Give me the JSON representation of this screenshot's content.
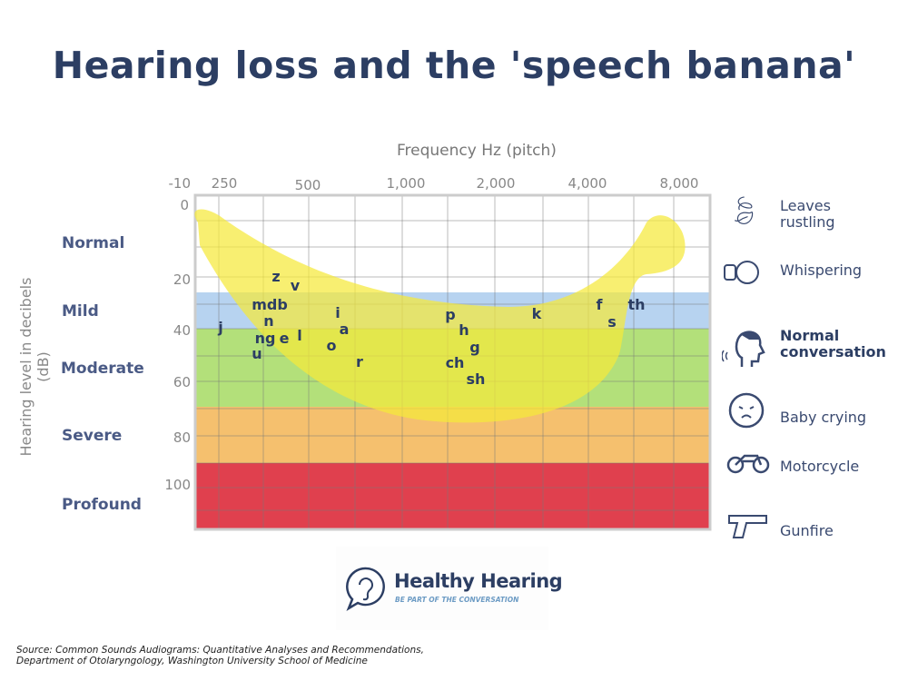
{
  "title": "Hearing loss and the 'speech banana'",
  "x_axis_label": "Frequency Hz (pitch)",
  "y_axis_label": "Hearing level in decibels (dB)",
  "x_ticks": [
    "250",
    "500",
    "1,000",
    "2,000",
    "4,000",
    "8,000"
  ],
  "y_ticks": [
    "-10",
    "0",
    "20",
    "40",
    "60",
    "80",
    "100"
  ],
  "severity": [
    {
      "label": "Normal",
      "color": "#ffffff"
    },
    {
      "label": "Mild",
      "color": "#b7d3f0"
    },
    {
      "label": "Moderate",
      "color": "#b3e07a"
    },
    {
      "label": "Severe",
      "color": "#f5c06e"
    },
    {
      "label": "Profound",
      "color": "#e0404e"
    }
  ],
  "banana_color": "#f5e93a",
  "phonemes": [
    {
      "t": "z",
      "x": "~375 Hz",
      "db": "20"
    },
    {
      "t": "v",
      "x": "~450 Hz",
      "db": "23"
    },
    {
      "t": "mdb",
      "x": "~350 Hz",
      "db": "30"
    },
    {
      "t": "n",
      "x": "~350 Hz",
      "db": "37"
    },
    {
      "t": "j",
      "x": "250 Hz",
      "db": "40"
    },
    {
      "t": "ng",
      "x": "~350 Hz",
      "db": "43"
    },
    {
      "t": "e",
      "x": "~400 Hz",
      "db": "43"
    },
    {
      "t": "l",
      "x": "~450 Hz",
      "db": "43"
    },
    {
      "t": "u",
      "x": "~325 Hz",
      "db": "48"
    },
    {
      "t": "i",
      "x": "~600 Hz",
      "db": "33"
    },
    {
      "t": "a",
      "x": "~650 Hz",
      "db": "40"
    },
    {
      "t": "o",
      "x": "~575 Hz",
      "db": "46"
    },
    {
      "t": "r",
      "x": "~750 Hz",
      "db": "52"
    },
    {
      "t": "p",
      "x": "~1500 Hz",
      "db": "34"
    },
    {
      "t": "h",
      "x": "~1600 Hz",
      "db": "40"
    },
    {
      "t": "g",
      "x": "~1750 Hz",
      "db": "47"
    },
    {
      "t": "ch",
      "x": "~1500 Hz",
      "db": "52"
    },
    {
      "t": "sh",
      "x": "~1750 Hz",
      "db": "58"
    },
    {
      "t": "k",
      "x": "~2800 Hz",
      "db": "34"
    },
    {
      "t": "f",
      "x": "~4300 Hz",
      "db": "30"
    },
    {
      "t": "s",
      "x": "~4700 Hz",
      "db": "37"
    },
    {
      "t": "th",
      "x": "~5500 Hz",
      "db": "30"
    }
  ],
  "sounds": [
    {
      "label": "Leaves rustling",
      "icon": "leaves-icon",
      "bold": false
    },
    {
      "label": "Whispering",
      "icon": "whisper-icon",
      "bold": false
    },
    {
      "label": "Normal conversation",
      "icon": "talking-head-icon",
      "bold": true
    },
    {
      "label": "Baby crying",
      "icon": "baby-icon",
      "bold": false
    },
    {
      "label": "Motorcycle",
      "icon": "motorcycle-icon",
      "bold": false
    },
    {
      "label": "Gunfire",
      "icon": "gun-icon",
      "bold": false
    }
  ],
  "logo": {
    "name": "Healthy Hearing",
    "tagline": "BE PART OF THE CONVERSATION"
  },
  "source": [
    "Source: Common Sounds Audiograms: Quantitative Analyses and Recommendations,",
    "Department of Otolaryngology, Washington University School of Medicine"
  ]
}
